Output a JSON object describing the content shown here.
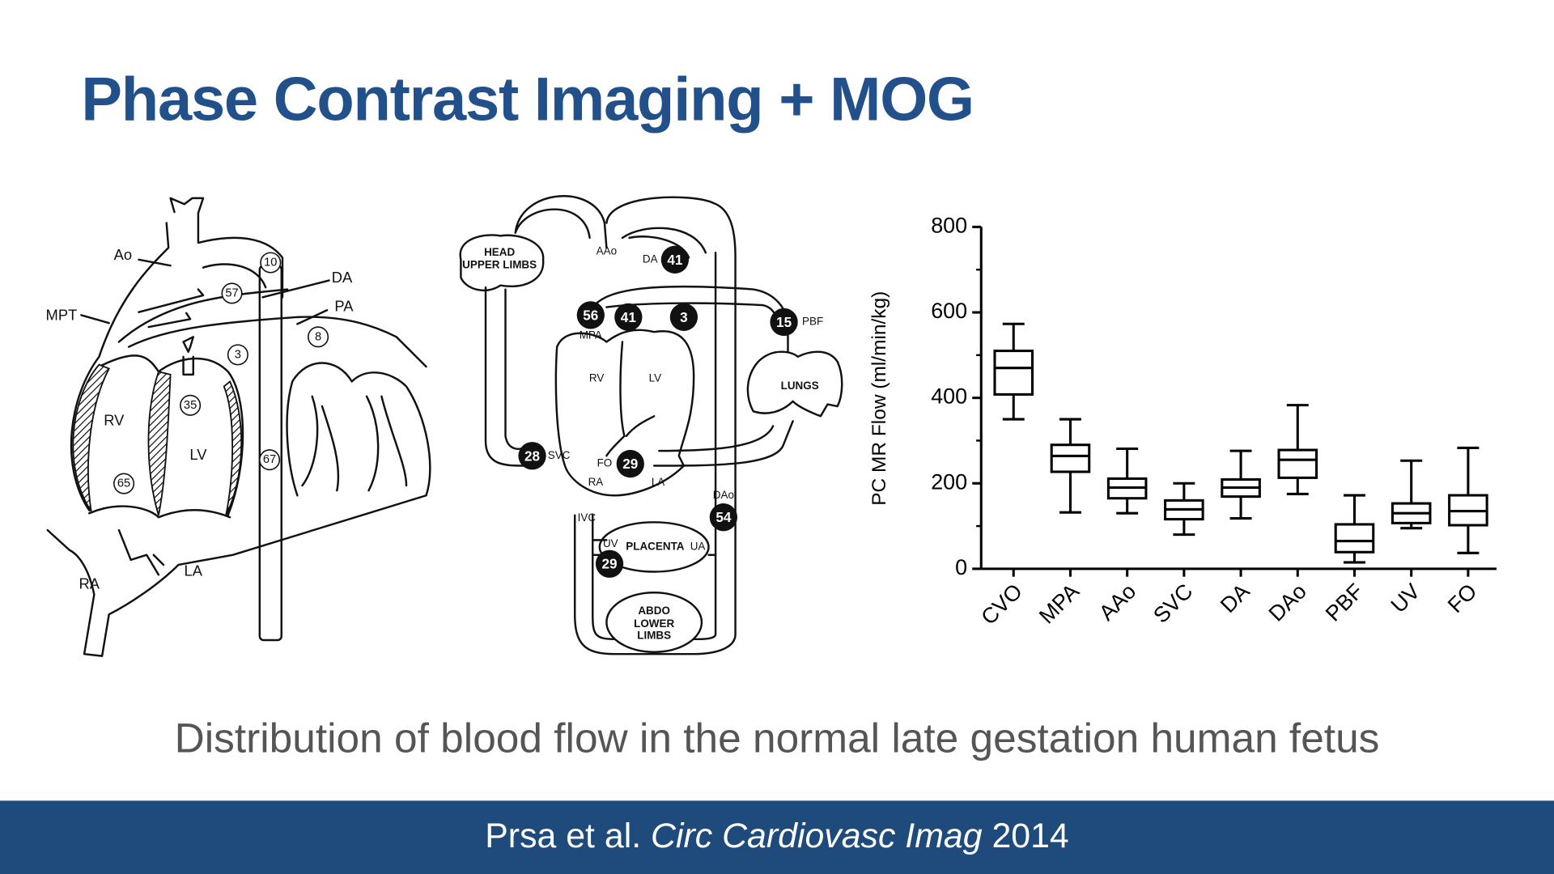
{
  "title": "Phase Contrast Imaging + MOG",
  "caption": "Distribution of blood flow in the normal late gestation human fetus",
  "citation": {
    "authors": "Prsa et al.",
    "journal": "Circ Cardiovasc Imag",
    "year": 2014
  },
  "left_diagram": {
    "labels": [
      "Ao",
      "DA",
      "PA",
      "MPT",
      "RV",
      "LV",
      "RA",
      "LA"
    ],
    "flows": [
      10,
      57,
      3,
      8,
      35,
      65,
      67
    ]
  },
  "middle_diagram": {
    "labels": [
      "HEAD",
      "UPPER LIMBS",
      "AAo",
      "DA",
      "PBF",
      "MPA",
      "RV",
      "LV",
      "LUNGS",
      "SVC",
      "FO",
      "RA",
      "LA",
      "DAo",
      "IVC",
      "UV",
      "PLACENTA",
      "UA",
      "ABDO",
      "LOWER",
      "LIMBS"
    ],
    "flows": [
      41,
      56,
      41,
      3,
      15,
      28,
      29,
      54,
      29
    ]
  },
  "chart_data": {
    "type": "box",
    "y_label": "PC MR Flow (ml/min/kg)",
    "categories": [
      "CVO",
      "MPA",
      "AAo",
      "SVC",
      "DA",
      "DAo",
      "PBF",
      "UV",
      "FO"
    ],
    "min": [
      350,
      132,
      130,
      80,
      118,
      175,
      15,
      95,
      37
    ],
    "q1": [
      408,
      227,
      165,
      116,
      169,
      213,
      39,
      107,
      102
    ],
    "median": [
      470,
      264,
      190,
      139,
      190,
      255,
      65,
      130,
      135
    ],
    "q3": [
      510,
      290,
      211,
      160,
      209,
      278,
      104,
      153,
      172
    ],
    "max": [
      573,
      350,
      281,
      200,
      276,
      383,
      172,
      253,
      283
    ],
    "ylim": [
      0,
      800
    ],
    "yticks": [
      0,
      200,
      400,
      600,
      800
    ],
    "minor_yticks": [
      100,
      300,
      500,
      700
    ],
    "color": "#000000"
  }
}
